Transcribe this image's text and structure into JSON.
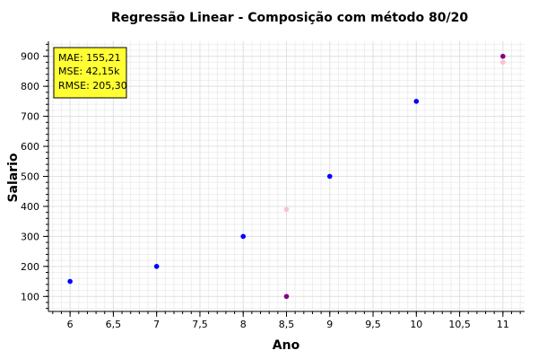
{
  "chart_data": {
    "type": "scatter",
    "title": "Regressão Linear - Composição com método 80/20",
    "xlabel": "Ano",
    "ylabel": "Salario",
    "xlim": [
      5.75,
      11.25
    ],
    "ylim": [
      50,
      950
    ],
    "x_ticks": [
      6,
      6.5,
      7,
      7.5,
      8,
      8.5,
      9,
      9.5,
      10,
      10.5,
      11
    ],
    "x_tick_labels": [
      "6",
      "6,5",
      "7",
      "7,5",
      "8",
      "8,5",
      "9",
      "9,5",
      "10",
      "10,5",
      "11"
    ],
    "y_ticks": [
      100,
      200,
      300,
      400,
      500,
      600,
      700,
      800,
      900
    ],
    "y_tick_labels": [
      "100",
      "200",
      "300",
      "400",
      "500",
      "600",
      "700",
      "800",
      "900"
    ],
    "grid": true,
    "series": [
      {
        "color": "#0000ff",
        "points": [
          [
            6,
            150
          ],
          [
            7,
            200
          ],
          [
            8,
            300
          ],
          [
            9,
            500
          ],
          [
            10,
            750
          ]
        ]
      },
      {
        "color": "#800080",
        "points": [
          [
            8.5,
            100
          ],
          [
            11,
            900
          ]
        ]
      },
      {
        "color": "#ffc0cb",
        "points": [
          [
            8.5,
            390
          ],
          [
            11,
            880
          ]
        ]
      }
    ],
    "annotations": {
      "metrics_box": {
        "lines": [
          "MAE: 155,21",
          "MSE: 42,15k",
          "RMSE: 205,30"
        ],
        "background": "#ffff33",
        "border": "#000000"
      }
    }
  }
}
